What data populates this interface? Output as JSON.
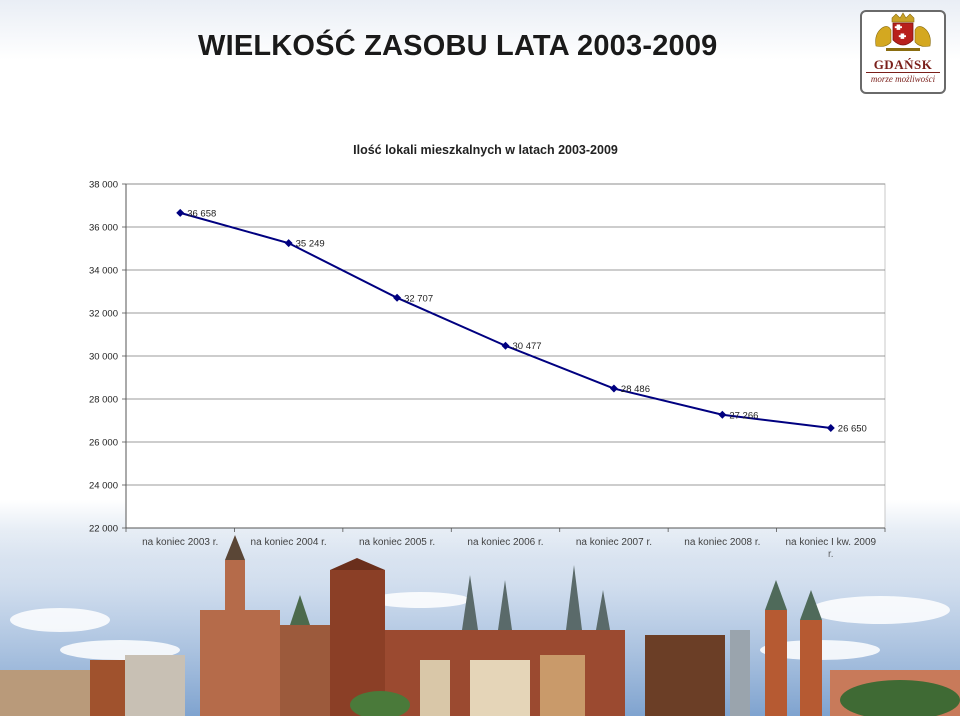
{
  "slide": {
    "title": "WIELKOŚĆ ZASOBU LATA 2003-2009"
  },
  "logo": {
    "name": "GDAŃSK",
    "slogan": "morze możliwości"
  },
  "chart_data": {
    "type": "line",
    "title": "Ilość lokali mieszkalnych w latach 2003-2009",
    "xlabel": "",
    "ylabel": "",
    "categories": [
      "na koniec 2003 r.",
      "na koniec 2004 r.",
      "na koniec 2005 r.",
      "na koniec 2006 r.",
      "na koniec 2007 r.",
      "na koniec 2008 r.",
      "na koniec I kw. 2009 r."
    ],
    "values": [
      36658,
      35249,
      32707,
      30477,
      28486,
      27266,
      26650
    ],
    "data_labels": [
      "36 658",
      "35 249",
      "32 707",
      "30 477",
      "28 486",
      "27 266",
      "26 650"
    ],
    "ylim": [
      22000,
      38000
    ],
    "yticks": [
      22000,
      24000,
      26000,
      28000,
      30000,
      32000,
      34000,
      36000,
      38000
    ],
    "ytick_labels": [
      "22 000",
      "24 000",
      "26 000",
      "28 000",
      "30 000",
      "32 000",
      "34 000",
      "36 000",
      "38 000"
    ],
    "grid": true,
    "legend": "none",
    "line_color": "#000080"
  }
}
